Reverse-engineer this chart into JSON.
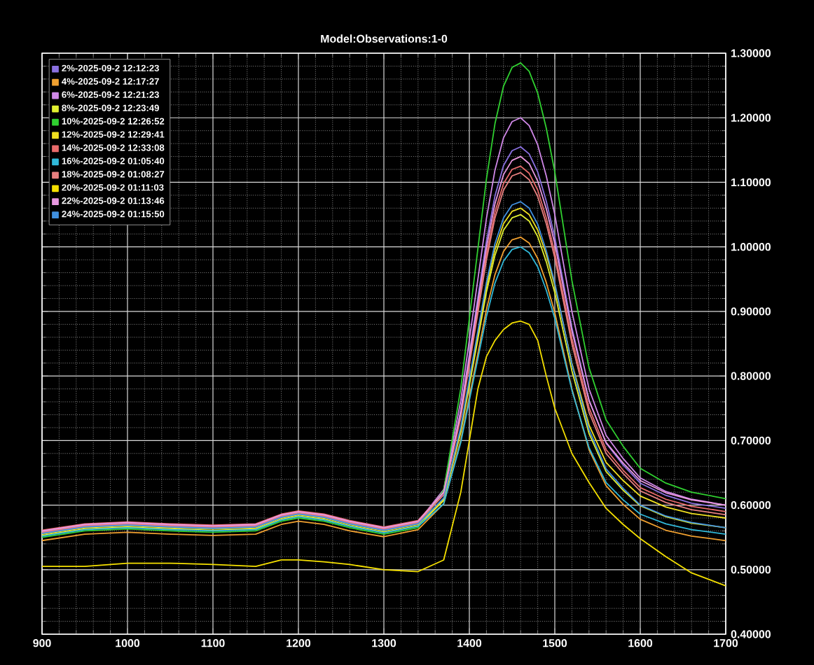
{
  "chart_data": {
    "type": "line",
    "title": "Model:Observations:1-0",
    "x": [
      900,
      950,
      1000,
      1050,
      1100,
      1150,
      1180,
      1200,
      1230,
      1260,
      1300,
      1340,
      1370,
      1390,
      1400,
      1410,
      1420,
      1430,
      1440,
      1450,
      1460,
      1470,
      1480,
      1490,
      1500,
      1520,
      1540,
      1560,
      1580,
      1600,
      1630,
      1660,
      1700
    ],
    "xlim": [
      900,
      1700
    ],
    "xticks": [
      900,
      1000,
      1100,
      1200,
      1300,
      1400,
      1500,
      1600,
      1700
    ],
    "ylim": [
      0.4,
      1.3
    ],
    "yticks": [
      {
        "value": 0.4,
        "label": "0.40000"
      },
      {
        "value": 0.5,
        "label": "0.50000"
      },
      {
        "value": 0.6,
        "label": "0.60000"
      },
      {
        "value": 0.7,
        "label": "0.70000"
      },
      {
        "value": 0.8,
        "label": "0.80000"
      },
      {
        "value": 0.9,
        "label": "0.90000"
      },
      {
        "value": 1.0,
        "label": "1.00000"
      },
      {
        "value": 1.1,
        "label": "1.10000"
      },
      {
        "value": 1.2,
        "label": "1.20000"
      },
      {
        "value": 1.3,
        "label": "1.30000"
      }
    ],
    "grid": true,
    "legend": "top left",
    "series": [
      {
        "name": "2%-2025-09-2 12:12:23",
        "color": "#8a70e0",
        "values": [
          0.557,
          0.567,
          0.57,
          0.567,
          0.565,
          0.567,
          0.582,
          0.587,
          0.582,
          0.572,
          0.562,
          0.572,
          0.619,
          0.747,
          0.834,
          0.922,
          1.009,
          1.079,
          1.126,
          1.149,
          1.155,
          1.144,
          1.116,
          1.071,
          1.015,
          0.875,
          0.763,
          0.696,
          0.662,
          0.634,
          0.615,
          0.603,
          0.595
        ]
      },
      {
        "name": "4%-2025-09-2 12:17:27",
        "color": "#f0a030",
        "values": [
          0.545,
          0.555,
          0.558,
          0.555,
          0.553,
          0.555,
          0.57,
          0.575,
          0.57,
          0.56,
          0.551,
          0.562,
          0.602,
          0.701,
          0.768,
          0.835,
          0.903,
          0.957,
          0.993,
          1.011,
          1.015,
          1.006,
          0.982,
          0.945,
          0.898,
          0.78,
          0.686,
          0.63,
          0.601,
          0.578,
          0.561,
          0.552,
          0.545
        ]
      },
      {
        "name": "6%-2025-09-2 12:21:23",
        "color": "#d088e8",
        "values": [
          0.559,
          0.569,
          0.572,
          0.569,
          0.567,
          0.569,
          0.584,
          0.589,
          0.584,
          0.574,
          0.564,
          0.574,
          0.624,
          0.762,
          0.856,
          0.95,
          1.044,
          1.119,
          1.169,
          1.194,
          1.2,
          1.188,
          1.158,
          1.11,
          1.05,
          0.9,
          0.78,
          0.708,
          0.672,
          0.642,
          0.621,
          0.609,
          0.6
        ]
      },
      {
        "name": "8%-2025-09-2 12:23:49",
        "color": "#e0f030",
        "values": [
          0.553,
          0.563,
          0.566,
          0.563,
          0.561,
          0.563,
          0.578,
          0.583,
          0.578,
          0.568,
          0.558,
          0.568,
          0.607,
          0.713,
          0.785,
          0.857,
          0.93,
          0.987,
          1.026,
          1.045,
          1.05,
          1.04,
          1.016,
          0.977,
          0.929,
          0.808,
          0.711,
          0.652,
          0.623,
          0.599,
          0.582,
          0.572,
          0.565
        ]
      },
      {
        "name": "10%-2025-09-2 12:26:52",
        "color": "#30d030",
        "values": [
          0.55,
          0.56,
          0.563,
          0.56,
          0.558,
          0.56,
          0.575,
          0.58,
          0.575,
          0.565,
          0.555,
          0.565,
          0.623,
          0.781,
          0.889,
          0.997,
          1.105,
          1.191,
          1.249,
          1.278,
          1.285,
          1.272,
          1.238,
          1.184,
          1.116,
          0.948,
          0.813,
          0.732,
          0.691,
          0.657,
          0.634,
          0.62,
          0.61
        ]
      },
      {
        "name": "12%-2025-09-2 12:29:41",
        "color": "#f0e020",
        "values": [
          0.555,
          0.565,
          0.568,
          0.565,
          0.563,
          0.565,
          0.58,
          0.585,
          0.58,
          0.57,
          0.56,
          0.57,
          0.609,
          0.717,
          0.791,
          0.864,
          0.938,
          0.996,
          1.036,
          1.055,
          1.06,
          1.05,
          1.026,
          0.988,
          0.94,
          0.82,
          0.724,
          0.666,
          0.638,
          0.614,
          0.597,
          0.587,
          0.58
        ]
      },
      {
        "name": "14%-2025-09-2 12:33:08",
        "color": "#e86a6a",
        "values": [
          0.561,
          0.571,
          0.574,
          0.571,
          0.569,
          0.571,
          0.586,
          0.591,
          0.586,
          0.576,
          0.566,
          0.576,
          0.62,
          0.741,
          0.823,
          0.905,
          0.988,
          1.054,
          1.098,
          1.12,
          1.125,
          1.114,
          1.088,
          1.045,
          0.991,
          0.858,
          0.751,
          0.686,
          0.654,
          0.627,
          0.609,
          0.598,
          0.59
        ]
      },
      {
        "name": "16%-2025-09-2 01:05:40",
        "color": "#30b8d8",
        "values": [
          0.552,
          0.562,
          0.565,
          0.562,
          0.56,
          0.562,
          0.577,
          0.582,
          0.577,
          0.567,
          0.557,
          0.567,
          0.602,
          0.697,
          0.762,
          0.827,
          0.892,
          0.944,
          0.978,
          0.996,
          1.0,
          0.991,
          0.969,
          0.933,
          0.889,
          0.778,
          0.689,
          0.635,
          0.608,
          0.586,
          0.571,
          0.562,
          0.555
        ]
      },
      {
        "name": "18%-2025-09-2 01:08:27",
        "color": "#e88080",
        "values": [
          0.558,
          0.568,
          0.571,
          0.568,
          0.566,
          0.568,
          0.583,
          0.588,
          0.583,
          0.573,
          0.563,
          0.573,
          0.616,
          0.736,
          0.817,
          0.898,
          0.98,
          1.045,
          1.088,
          1.11,
          1.115,
          1.104,
          1.078,
          1.036,
          0.983,
          0.85,
          0.744,
          0.68,
          0.649,
          0.622,
          0.604,
          0.593,
          0.585
        ]
      },
      {
        "name": "20%-2025-09-2 01:11:03",
        "color": "#f5e000",
        "values": [
          0.505,
          0.505,
          0.51,
          0.51,
          0.508,
          0.505,
          0.515,
          0.515,
          0.512,
          0.508,
          0.5,
          0.497,
          0.515,
          0.62,
          0.7,
          0.78,
          0.83,
          0.855,
          0.872,
          0.882,
          0.885,
          0.88,
          0.855,
          0.8,
          0.75,
          0.68,
          0.635,
          0.595,
          0.57,
          0.548,
          0.52,
          0.495,
          0.475
        ]
      },
      {
        "name": "22%-2025-09-2 01:13:46",
        "color": "#e898e0",
        "values": [
          0.56,
          0.57,
          0.573,
          0.57,
          0.568,
          0.57,
          0.585,
          0.59,
          0.585,
          0.575,
          0.565,
          0.575,
          0.62,
          0.745,
          0.829,
          0.914,
          0.999,
          1.067,
          1.112,
          1.134,
          1.14,
          1.129,
          1.102,
          1.059,
          1.005,
          0.87,
          0.762,
          0.697,
          0.665,
          0.638,
          0.619,
          0.608,
          0.6
        ]
      },
      {
        "name": "24%-2025-09-2 01:15:50",
        "color": "#4090e0",
        "values": [
          0.556,
          0.566,
          0.569,
          0.566,
          0.564,
          0.566,
          0.581,
          0.586,
          0.581,
          0.571,
          0.561,
          0.571,
          0.611,
          0.721,
          0.796,
          0.87,
          0.945,
          1.005,
          1.045,
          1.065,
          1.07,
          1.06,
          1.035,
          0.994,
          0.944,
          0.818,
          0.717,
          0.656,
          0.626,
          0.6,
          0.583,
          0.573,
          0.565
        ]
      }
    ]
  }
}
